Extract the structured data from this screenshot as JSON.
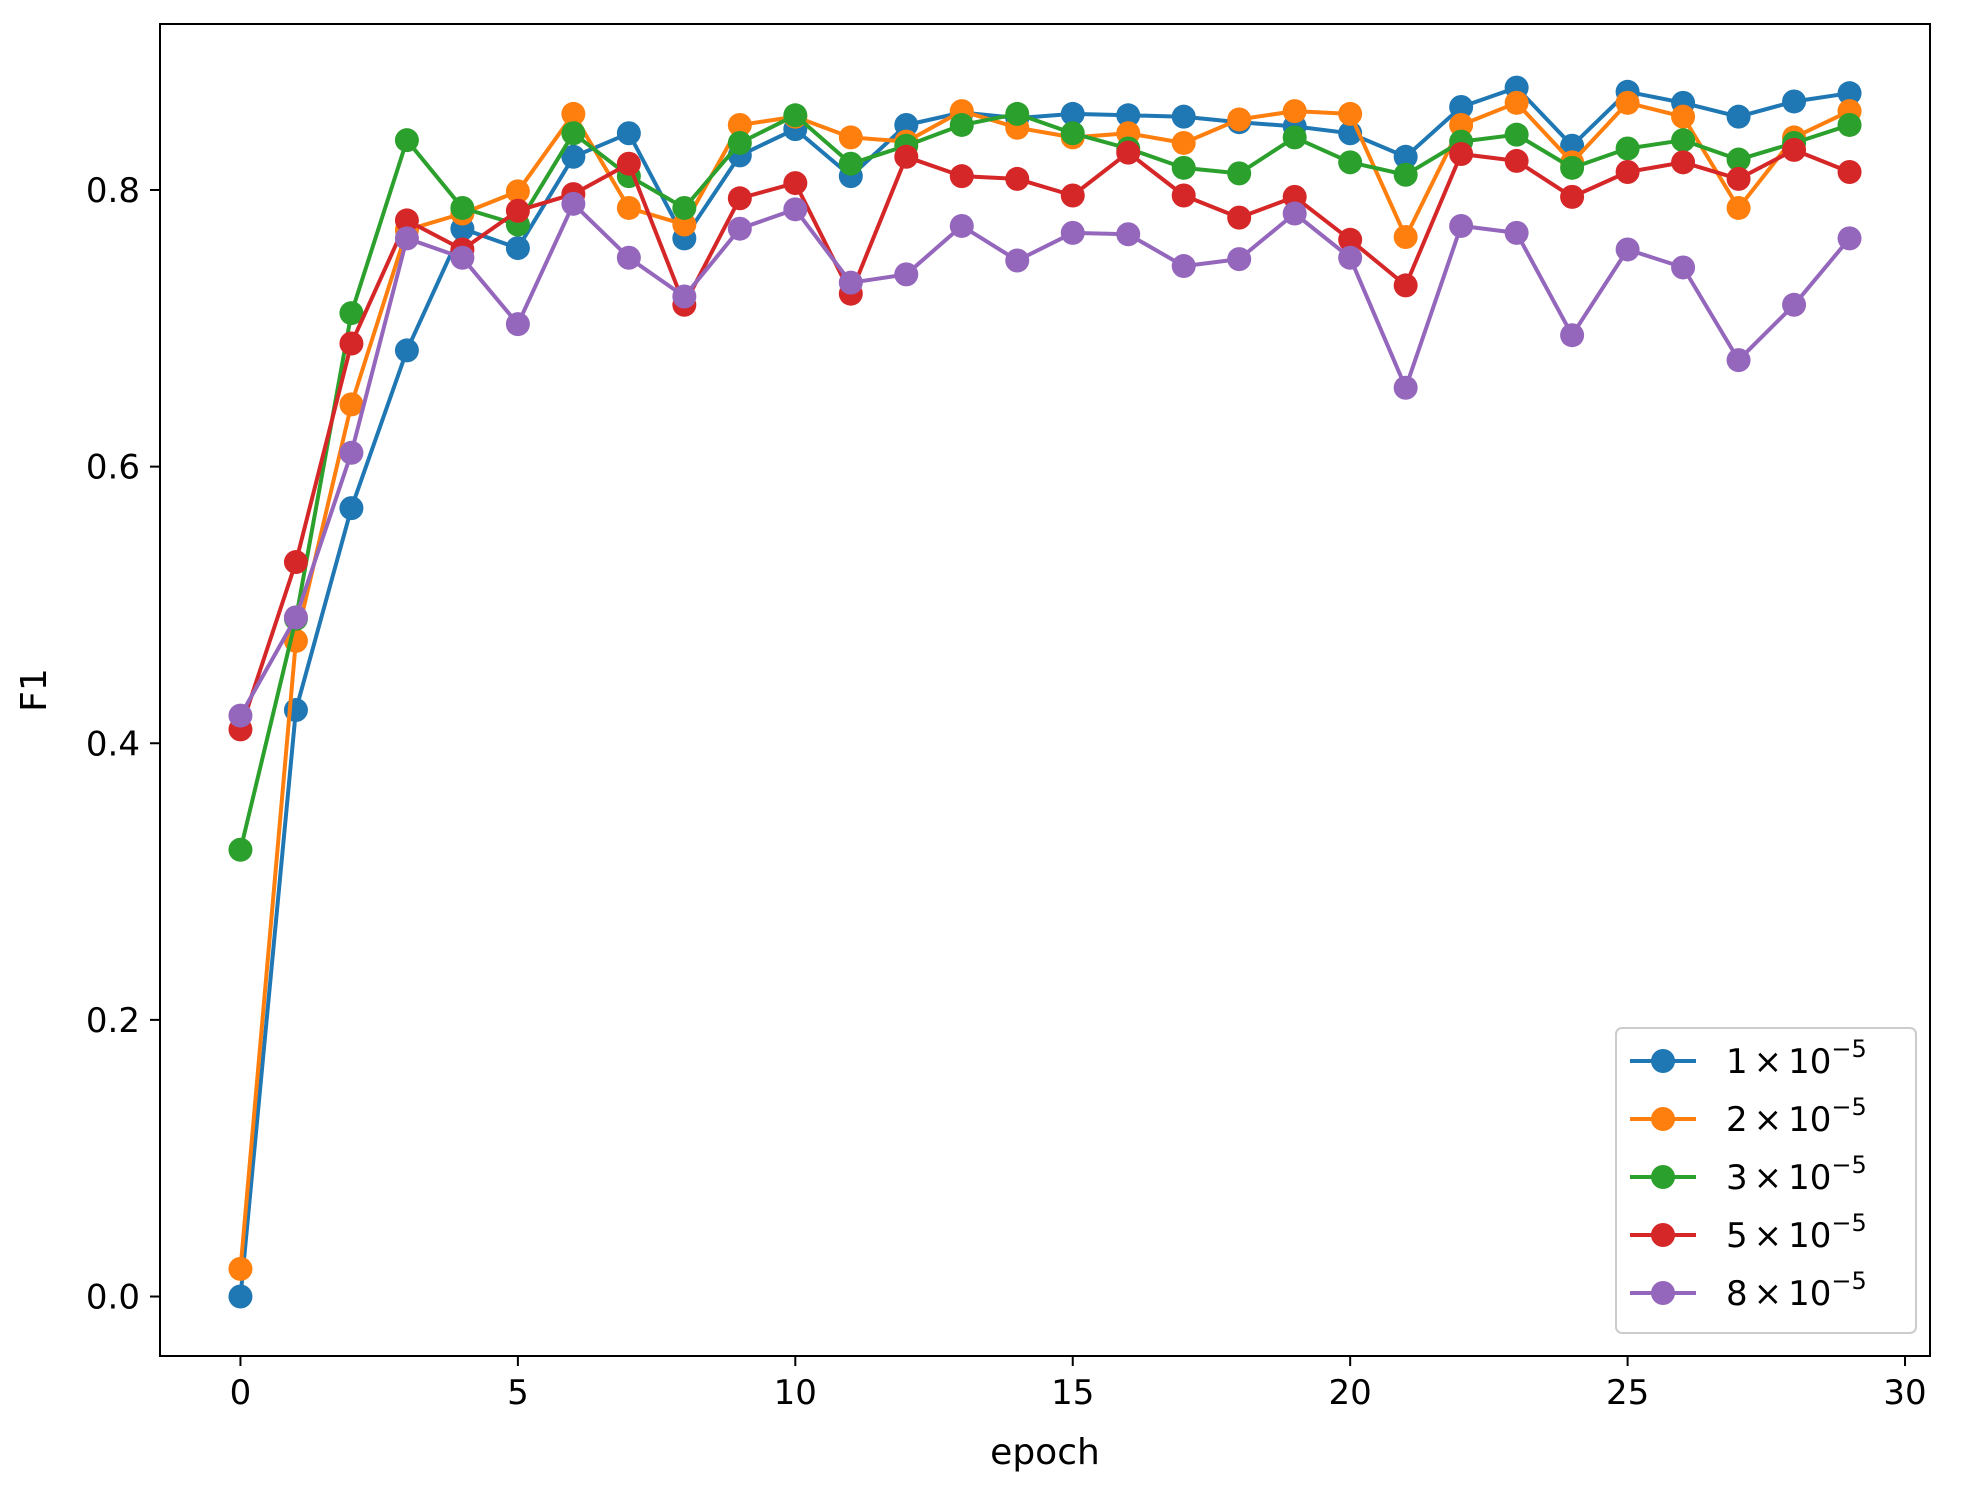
{
  "chart_data": {
    "type": "line",
    "title": "",
    "xlabel": "epoch",
    "ylabel": "F1",
    "xlim": [
      -1.45,
      30.45
    ],
    "ylim": [
      -0.043,
      0.92
    ],
    "xticks": [
      0,
      5,
      10,
      15,
      20,
      25,
      30
    ],
    "xtick_labels": [
      "0",
      "5",
      "10",
      "15",
      "20",
      "25",
      "30"
    ],
    "yticks": [
      0.0,
      0.2,
      0.4,
      0.6,
      0.8
    ],
    "ytick_labels": [
      "0.0",
      "0.2",
      "0.4",
      "0.6",
      "0.8"
    ],
    "grid": false,
    "legend_position": "lower-right",
    "x": [
      0,
      1,
      2,
      3,
      4,
      5,
      6,
      7,
      8,
      9,
      10,
      11,
      12,
      13,
      14,
      15,
      16,
      17,
      18,
      19,
      20,
      21,
      22,
      23,
      24,
      25,
      26,
      27,
      28,
      29
    ],
    "series": [
      {
        "name": "1 × 10⁻⁵",
        "legend": {
          "mantissa": "1",
          "times": "×",
          "base": "10",
          "exp": "−5"
        },
        "color": "#1f77b4",
        "values": [
          0.0,
          0.424,
          0.57,
          0.684,
          0.772,
          0.758,
          0.824,
          0.841,
          0.765,
          0.825,
          0.844,
          0.81,
          0.847,
          0.856,
          0.852,
          0.855,
          0.854,
          0.853,
          0.849,
          0.846,
          0.841,
          0.824,
          0.86,
          0.874,
          0.832,
          0.871,
          0.863,
          0.853,
          0.864,
          0.87
        ]
      },
      {
        "name": "2 × 10⁻⁵",
        "legend": {
          "mantissa": "2",
          "times": "×",
          "base": "10",
          "exp": "−5"
        },
        "color": "#ff7f0e",
        "values": [
          0.02,
          0.474,
          0.645,
          0.771,
          0.783,
          0.799,
          0.855,
          0.787,
          0.775,
          0.847,
          0.853,
          0.838,
          0.835,
          0.857,
          0.845,
          0.838,
          0.841,
          0.834,
          0.851,
          0.857,
          0.855,
          0.766,
          0.847,
          0.863,
          0.82,
          0.863,
          0.853,
          0.787,
          0.838,
          0.857
        ]
      },
      {
        "name": "3 × 10⁻⁵",
        "legend": {
          "mantissa": "3",
          "times": "×",
          "base": "10",
          "exp": "−5"
        },
        "color": "#2ca02c",
        "values": [
          0.323,
          0.49,
          0.711,
          0.836,
          0.787,
          0.775,
          0.841,
          0.81,
          0.787,
          0.834,
          0.854,
          0.819,
          0.832,
          0.847,
          0.855,
          0.841,
          0.83,
          0.816,
          0.812,
          0.838,
          0.82,
          0.811,
          0.835,
          0.84,
          0.816,
          0.83,
          0.836,
          0.822,
          0.834,
          0.847
        ]
      },
      {
        "name": "5 × 10⁻⁵",
        "legend": {
          "mantissa": "5",
          "times": "×",
          "base": "10",
          "exp": "−5"
        },
        "color": "#d62728",
        "values": [
          0.41,
          0.531,
          0.689,
          0.778,
          0.757,
          0.785,
          0.797,
          0.819,
          0.717,
          0.794,
          0.805,
          0.725,
          0.824,
          0.81,
          0.808,
          0.796,
          0.827,
          0.796,
          0.78,
          0.795,
          0.764,
          0.731,
          0.826,
          0.821,
          0.795,
          0.813,
          0.82,
          0.808,
          0.829,
          0.813
        ]
      },
      {
        "name": "8 × 10⁻⁵",
        "legend": {
          "mantissa": "8",
          "times": "×",
          "base": "10",
          "exp": "−5"
        },
        "color": "#9467bd",
        "values": [
          0.42,
          0.491,
          0.61,
          0.765,
          0.751,
          0.703,
          0.79,
          0.751,
          0.723,
          0.772,
          0.786,
          0.733,
          0.739,
          0.774,
          0.749,
          0.769,
          0.768,
          0.745,
          0.75,
          0.783,
          0.751,
          0.657,
          0.774,
          0.769,
          0.695,
          0.757,
          0.744,
          0.677,
          0.717,
          0.765
        ]
      }
    ]
  }
}
